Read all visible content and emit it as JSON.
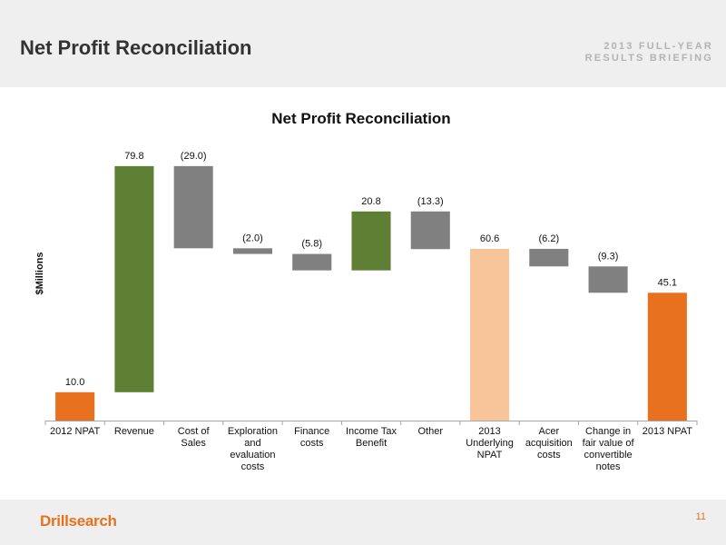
{
  "header": {
    "title": "Net Profit Reconciliation",
    "briefing_line1": "2013 FULL-YEAR",
    "briefing_line2": "RESULTS BRIEFING"
  },
  "footer": {
    "logo_text": "Drillsearch",
    "page_number": "11"
  },
  "colors": {
    "npat": "#e8711f",
    "increase": "#5f7f34",
    "decrease": "#808080",
    "underlying": "#f8c49a",
    "header_bg": "#efefef"
  },
  "chart_data": {
    "type": "bar",
    "subtype": "waterfall",
    "title": "Net Profit Reconciliation",
    "ylabel": "$Millions",
    "xlabel": "",
    "ylim": [
      0,
      92
    ],
    "grid": false,
    "legend": "none",
    "categories": [
      [
        "2012 NPAT"
      ],
      [
        "Revenue"
      ],
      [
        "Cost of",
        "Sales"
      ],
      [
        "Exploration",
        "and",
        "evaluation",
        "costs"
      ],
      [
        "Finance",
        "costs"
      ],
      [
        "Income Tax",
        "Benefit"
      ],
      [
        "Other"
      ],
      [
        "2013",
        "Underlying",
        "NPAT"
      ],
      [
        "Acer",
        "acquisition",
        "costs"
      ],
      [
        "Change in",
        "fair value of",
        "convertible",
        "notes"
      ],
      [
        "2013 NPAT"
      ]
    ],
    "bars": [
      {
        "label": "10.0",
        "bottom": 0,
        "top": 10.0,
        "kind": "npat"
      },
      {
        "label": "79.8",
        "bottom": 10.0,
        "top": 89.8,
        "kind": "increase"
      },
      {
        "label": "(29.0)",
        "bottom": 60.8,
        "top": 89.8,
        "kind": "decrease"
      },
      {
        "label": "(2.0)",
        "bottom": 58.8,
        "top": 60.8,
        "kind": "decrease"
      },
      {
        "label": "(5.8)",
        "bottom": 53.0,
        "top": 58.8,
        "kind": "decrease"
      },
      {
        "label": "20.8",
        "bottom": 53.0,
        "top": 73.8,
        "kind": "increase"
      },
      {
        "label": "(13.3)",
        "bottom": 60.5,
        "top": 73.8,
        "kind": "decrease"
      },
      {
        "label": "60.6",
        "bottom": 0,
        "top": 60.6,
        "kind": "underlying"
      },
      {
        "label": "(6.2)",
        "bottom": 54.4,
        "top": 60.6,
        "kind": "decrease"
      },
      {
        "label": "(9.3)",
        "bottom": 45.1,
        "top": 54.4,
        "kind": "decrease"
      },
      {
        "label": "45.1",
        "bottom": 0,
        "top": 45.1,
        "kind": "npat"
      }
    ]
  }
}
